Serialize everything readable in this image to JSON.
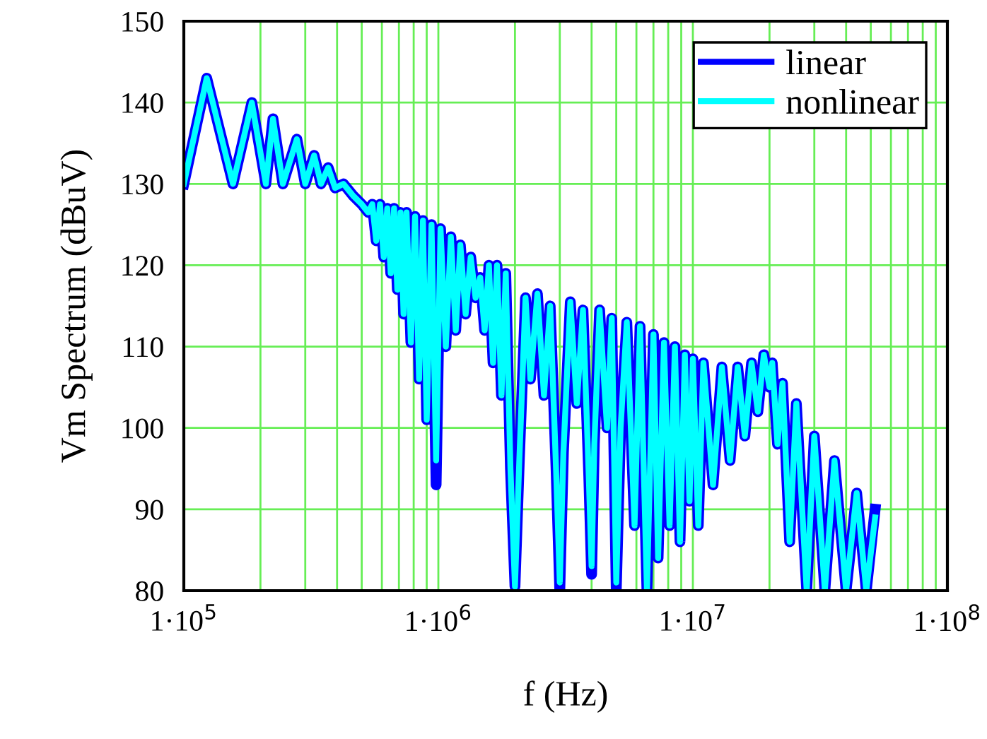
{
  "chart_data": {
    "type": "line",
    "xlabel": "f (Hz)",
    "ylabel": "Vm Spectrum (dBuV)",
    "log": "x",
    "xlim": [
      100000,
      100000000
    ],
    "xticks": [
      {
        "value": 100000,
        "label": "1·10$^{5}$"
      },
      {
        "value": 1000000,
        "label": "1·10$^{6}$"
      },
      {
        "value": 10000000,
        "label": "1·10$^{7}$"
      },
      {
        "value": 100000000,
        "label": "1·10$^{8}$"
      }
    ],
    "ylim": [
      80,
      150
    ],
    "yticks": [
      80,
      90,
      100,
      110,
      120,
      130,
      140,
      150
    ],
    "grid": true,
    "legend": "top right",
    "x": [
      100000,
      123000,
      156000,
      185000,
      210000,
      224000,
      245000,
      278000,
      300000,
      325000,
      346000,
      369000,
      393000,
      424000,
      464000,
      500000,
      530000,
      550000,
      570000,
      590000,
      610000,
      630000,
      650000,
      670000,
      690000,
      710000,
      730000,
      750000,
      780000,
      810000,
      840000,
      870000,
      900000,
      940000,
      980000,
      1020000,
      1070000,
      1120000,
      1170000,
      1220000,
      1280000,
      1340000,
      1400000,
      1460000,
      1520000,
      1580000,
      1640000,
      1700000,
      1770000,
      1840000,
      1920000,
      2000000,
      2080000,
      2200000,
      2300000,
      2450000,
      2600000,
      2750000,
      2900000,
      3000000,
      3100000,
      3300000,
      3500000,
      3700000,
      3900000,
      4000000,
      4100000,
      4300000,
      4600000,
      4800000,
      5000000,
      5200000,
      5500000,
      5900000,
      6200000,
      6600000,
      7000000,
      7300000,
      7700000,
      8100000,
      8500000,
      8900000,
      9300000,
      9700000,
      10000000,
      10500000,
      11000000,
      12000000,
      13000000,
      14000000,
      15000000,
      16000000,
      17000000,
      18000000,
      19000000,
      20000000,
      20500000,
      21500000,
      22500000,
      24000000,
      25500000,
      28000000,
      30000000,
      33000000,
      36000000,
      40000000,
      44000000,
      48000000,
      52000000
    ],
    "series": [
      {
        "name": "linear",
        "color": "#0000ff",
        "values": [
          130,
          143,
          130,
          140,
          130,
          138,
          130,
          135.5,
          130,
          133.5,
          130,
          132,
          129.5,
          130,
          128.5,
          127.5,
          126.5,
          127.5,
          123,
          127.5,
          121,
          127,
          119,
          127,
          117,
          126.5,
          114,
          126.5,
          110.5,
          126,
          106,
          125.5,
          101,
          125,
          93,
          124.5,
          110,
          123.5,
          112,
          122.5,
          114,
          121,
          116,
          118.5,
          112,
          120,
          108,
          120,
          104,
          119,
          95,
          80.5,
          96,
          116,
          106,
          116.5,
          104,
          115,
          95,
          80,
          97,
          115.5,
          103,
          114.5,
          94,
          82,
          98,
          114.5,
          100,
          113.5,
          80,
          100,
          113,
          88,
          112.5,
          80,
          111.5,
          84,
          110.5,
          88,
          110,
          86,
          109,
          91,
          108.5,
          88,
          108,
          93,
          107.5,
          96,
          107.5,
          99,
          108,
          102,
          109,
          105,
          108,
          98,
          105.5,
          86,
          103,
          80,
          99,
          80,
          96,
          80,
          92,
          80,
          90
        ]
      },
      {
        "name": "nonlinear",
        "color": "#00ffff",
        "values": [
          130,
          143,
          130,
          140,
          130,
          138,
          130,
          135.5,
          130,
          133.5,
          130,
          132,
          129.5,
          130,
          128.5,
          127.5,
          126.5,
          127.5,
          123,
          127.5,
          121,
          127,
          119,
          127,
          117,
          126.5,
          114,
          126.5,
          110.5,
          126,
          106,
          125.5,
          101,
          125,
          96,
          124.5,
          110,
          123.5,
          112,
          122.5,
          114,
          121,
          116,
          118.5,
          112,
          120,
          108,
          120,
          104,
          119,
          95,
          80.5,
          96,
          116,
          106,
          116.5,
          104,
          115,
          95,
          81,
          97,
          115.5,
          103,
          114.5,
          94,
          83,
          98,
          114.5,
          100,
          113.5,
          81,
          100,
          113,
          88,
          112.5,
          80,
          111.5,
          84,
          110.5,
          88,
          110,
          86,
          109,
          91,
          108.5,
          88,
          108,
          93,
          107.5,
          96,
          107.5,
          99,
          108,
          102,
          109,
          105,
          108,
          98,
          105.5,
          86,
          103,
          80,
          99,
          80,
          96,
          80,
          92,
          80,
          89
        ]
      }
    ]
  }
}
